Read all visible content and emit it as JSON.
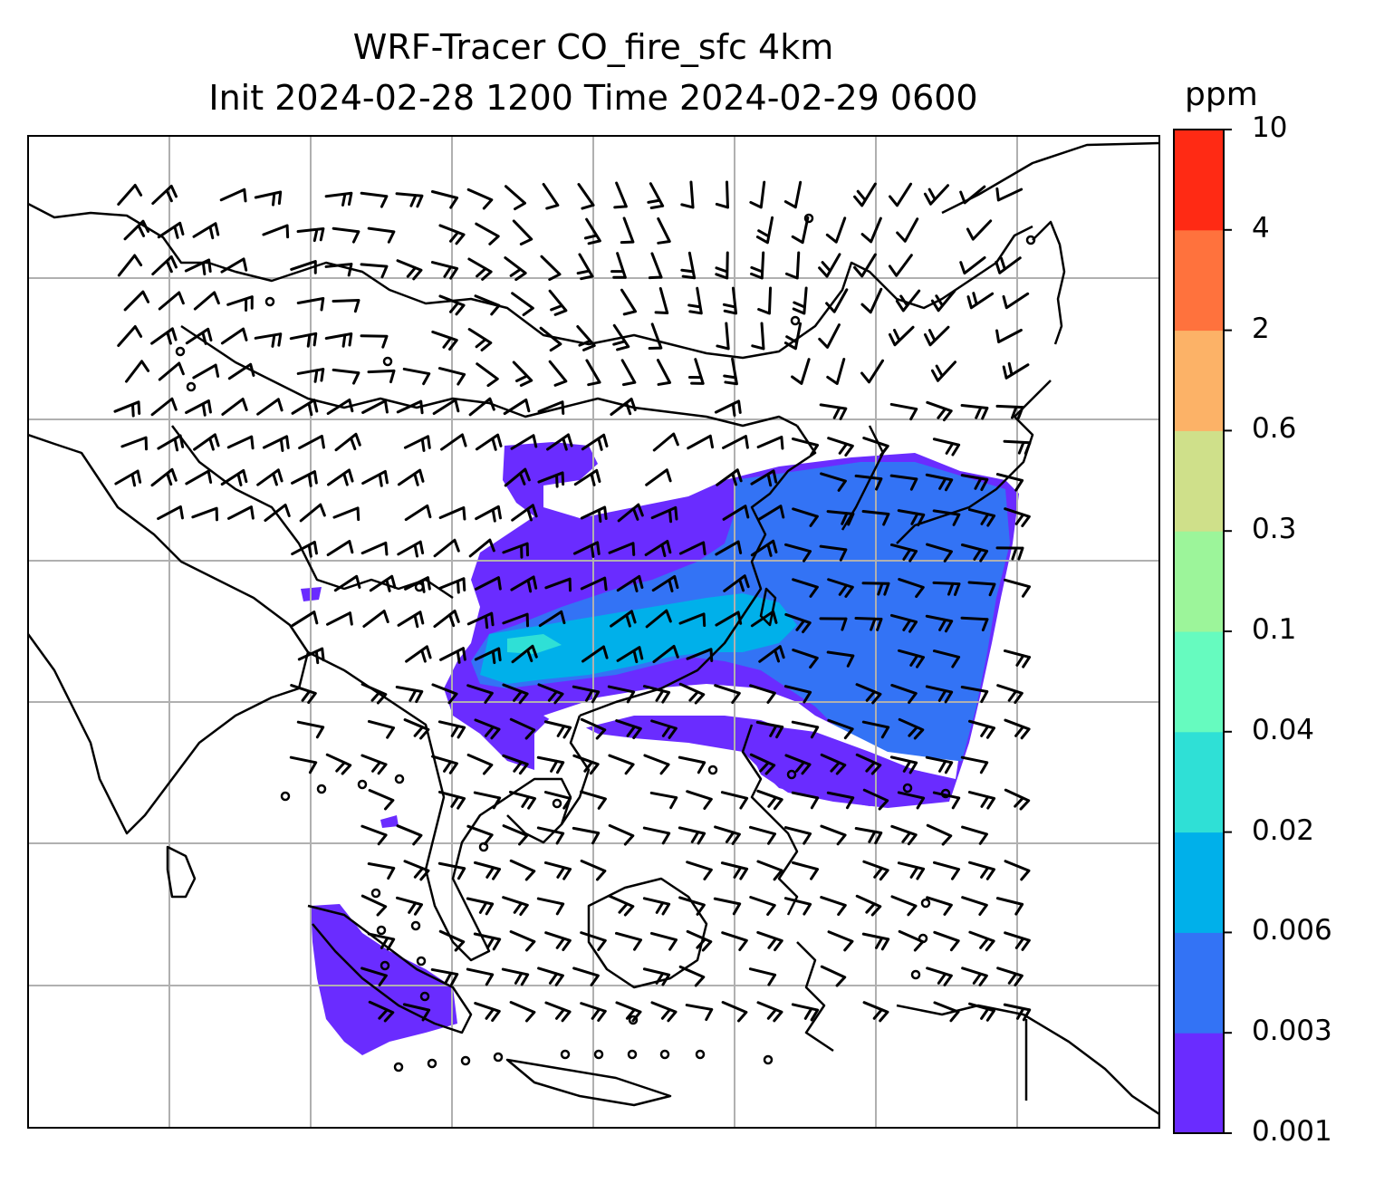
{
  "title": {
    "line1": "WRF-Tracer CO_fire_sfc 4km",
    "line2": "Init 2024-02-28 1200 Time 2024-02-29 0600"
  },
  "colorbar": {
    "unit": "ppm",
    "levels": [
      "0.001",
      "0.003",
      "0.006",
      "0.02",
      "0.04",
      "0.1",
      "0.3",
      "0.6",
      "2",
      "4",
      "10"
    ],
    "colors": [
      "#6a2cff",
      "#3373f5",
      "#00b0ea",
      "#2fe0d6",
      "#66fbbf",
      "#9cf59a",
      "#cfe08a",
      "#fcb267",
      "#ff723d",
      "#ff2a14"
    ]
  },
  "map": {
    "plume_colors": {
      "level1": "#6a2cff",
      "level2": "#3373f5",
      "level3": "#00b0ea",
      "level4": "#2fe0d6"
    },
    "gridline_color": "#b0b0b0",
    "coastline_color": "#000000",
    "wind_barb_color": "#000000"
  }
}
